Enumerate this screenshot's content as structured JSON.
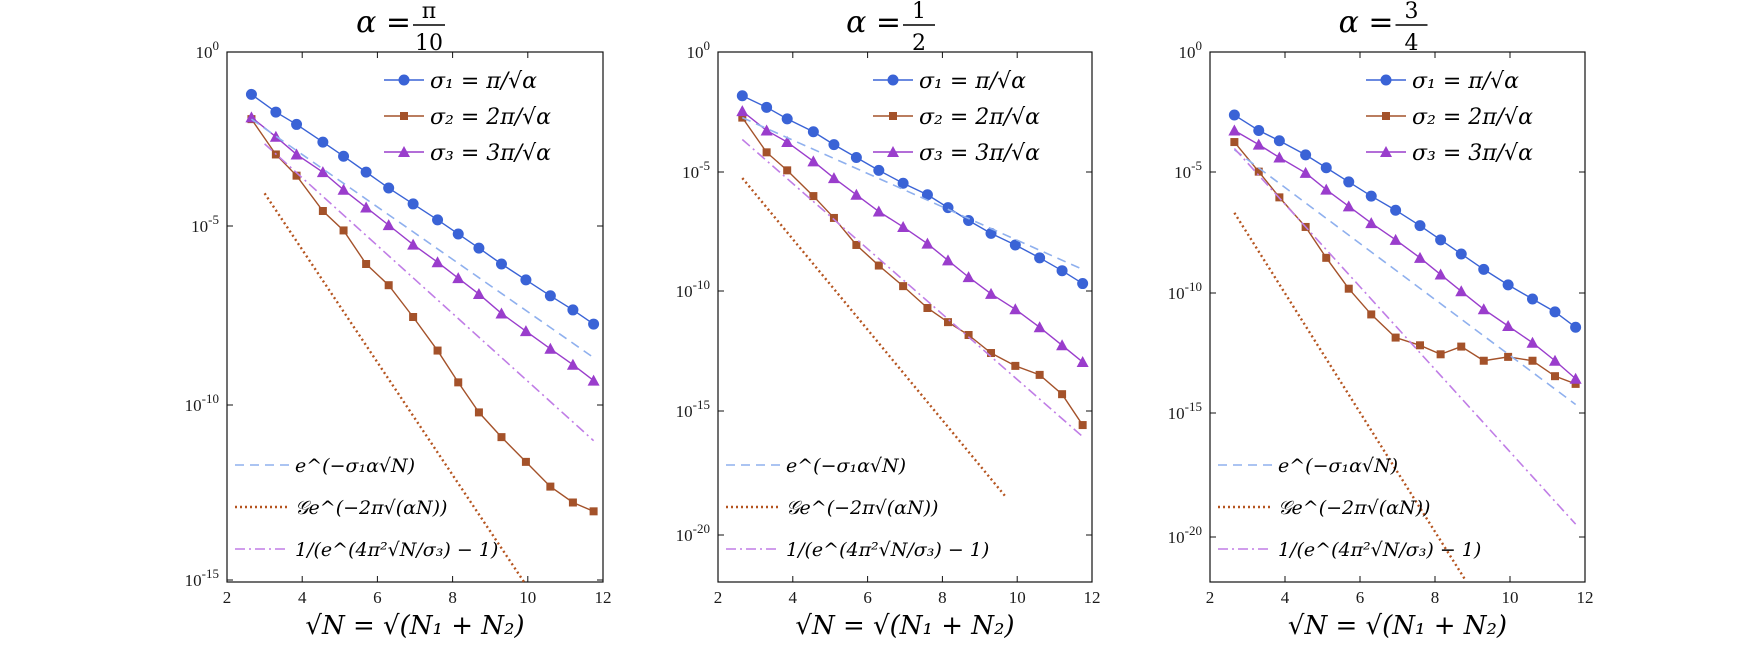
{
  "figure": {
    "x_axis_label": "√N = √(N₁ + N₂)",
    "x_ticks": [
      2,
      4,
      6,
      8,
      10,
      12
    ],
    "colors": {
      "sigma1": "#3a63d6",
      "sigma2": "#a4522a",
      "sigma3": "#9a3dcc",
      "ref1": "#8fb0ee",
      "ref2": "#b5541f",
      "ref3": "#c07de6"
    },
    "legend_top": [
      "σ₁ = π/√α",
      "σ₂ = 2π/√α",
      "σ₃ = 3π/√α"
    ],
    "legend_bottom": [
      "e^(−σ₁α√N)",
      "𝒢e^(−2π√(αN))",
      "1/(e^(4π²√N/σ₃) − 1)"
    ]
  },
  "chart_data": [
    {
      "type": "line",
      "title": "α = π/10",
      "xlabel": "√N = √(N₁ + N₂)",
      "ylabel": "",
      "xlim": [
        2,
        12
      ],
      "ylim_exp": [
        -15,
        0
      ],
      "y_tick_labels": [
        "10^0",
        "10^-5",
        "10^-10",
        "10^-15"
      ],
      "series": [
        {
          "name": "σ₁ = π/√α",
          "marker": "circle",
          "x": [
            2.65,
            3.3,
            3.85,
            4.55,
            5.1,
            5.7,
            6.3,
            6.95,
            7.6,
            8.15,
            8.7,
            9.3,
            9.95,
            10.6,
            11.2,
            11.75
          ],
          "log10y": [
            -1.2,
            -1.7,
            -2.05,
            -2.55,
            -2.95,
            -3.4,
            -3.85,
            -4.3,
            -4.75,
            -5.15,
            -5.55,
            -6.0,
            -6.45,
            -6.9,
            -7.3,
            -7.7
          ]
        },
        {
          "name": "σ₂ = 2π/√α",
          "marker": "square",
          "x": [
            2.65,
            3.3,
            3.85,
            4.55,
            5.1,
            5.7,
            6.3,
            6.95,
            7.6,
            8.15,
            8.7,
            9.3,
            9.95,
            10.6,
            11.2,
            11.75
          ],
          "log10y": [
            -1.9,
            -2.9,
            -3.5,
            -4.5,
            -5.05,
            -6.0,
            -6.6,
            -7.5,
            -8.45,
            -9.35,
            -10.2,
            -10.9,
            -11.6,
            -12.3,
            -12.75,
            -13.0
          ]
        },
        {
          "name": "σ₃ = 3π/√α",
          "marker": "triangle",
          "x": [
            2.65,
            3.3,
            3.85,
            4.55,
            5.1,
            5.7,
            6.3,
            6.95,
            7.6,
            8.15,
            8.7,
            9.3,
            9.95,
            10.6,
            11.2,
            11.75
          ],
          "log10y": [
            -1.85,
            -2.4,
            -2.9,
            -3.4,
            -3.9,
            -4.4,
            -4.9,
            -5.45,
            -5.95,
            -6.4,
            -6.85,
            -7.4,
            -7.9,
            -8.4,
            -8.85,
            -9.3
          ]
        },
        {
          "name": "e^(−σ₁α√N)",
          "style": "dashed",
          "x": [
            2.65,
            11.75
          ],
          "log10y": [
            -1.9,
            -8.65
          ]
        },
        {
          "name": "𝒢e^(−2π√(αN))",
          "style": "dotted",
          "x": [
            3.0,
            9.9
          ],
          "log10y": [
            -4.0,
            -15.0
          ]
        },
        {
          "name": "1/(e^(4π²√N/σ₃) − 1)",
          "style": "dashdot",
          "x": [
            3.0,
            11.75
          ],
          "log10y": [
            -2.6,
            -11.0
          ]
        }
      ]
    },
    {
      "type": "line",
      "title": "α = 1/2",
      "xlabel": "√N = √(N₁ + N₂)",
      "ylabel": "",
      "xlim": [
        2,
        12
      ],
      "ylim_exp": [
        -22,
        0
      ],
      "y_tick_labels": [
        "10^0",
        "10^-5",
        "10^-10",
        "10^-15",
        "10^-20"
      ],
      "series": [
        {
          "name": "σ₁ = π/√α",
          "marker": "circle",
          "x": [
            2.65,
            3.3,
            3.85,
            4.55,
            5.1,
            5.7,
            6.3,
            6.95,
            7.6,
            8.15,
            8.7,
            9.3,
            9.95,
            10.6,
            11.2,
            11.75
          ],
          "log10y": [
            -1.7,
            -2.15,
            -2.6,
            -3.1,
            -3.6,
            -4.1,
            -4.6,
            -5.1,
            -5.55,
            -6.05,
            -6.55,
            -7.05,
            -7.5,
            -8.0,
            -8.5,
            -9.0
          ]
        },
        {
          "name": "σ₂ = 2π/√α",
          "marker": "square",
          "x": [
            2.65,
            3.3,
            3.85,
            4.55,
            5.1,
            5.7,
            6.3,
            6.95,
            7.6,
            8.15,
            8.7,
            9.3,
            9.95,
            10.6,
            11.2,
            11.75
          ],
          "log10y": [
            -2.55,
            -3.9,
            -4.6,
            -5.6,
            -6.45,
            -7.5,
            -8.3,
            -9.1,
            -9.95,
            -10.5,
            -11.0,
            -11.7,
            -12.2,
            -12.55,
            -13.3,
            -14.5
          ]
        },
        {
          "name": "σ₃ = 3π/√α",
          "marker": "triangle",
          "x": [
            2.65,
            3.3,
            3.85,
            4.55,
            5.1,
            5.7,
            6.3,
            6.95,
            7.6,
            8.15,
            8.7,
            9.3,
            9.95,
            10.6,
            11.2,
            11.75
          ],
          "log10y": [
            -2.3,
            -3.05,
            -3.5,
            -4.25,
            -4.9,
            -5.55,
            -6.2,
            -6.8,
            -7.45,
            -8.1,
            -8.75,
            -9.4,
            -10.0,
            -10.7,
            -11.4,
            -12.05
          ]
        },
        {
          "name": "e^(−σ₁α√N)",
          "style": "dashed",
          "x": [
            2.65,
            11.75
          ],
          "log10y": [
            -2.55,
            -8.45
          ]
        },
        {
          "name": "𝒢e^(−2π√(αN))",
          "style": "dotted",
          "x": [
            2.65,
            9.7
          ],
          "log10y": [
            -4.9,
            -17.3
          ]
        },
        {
          "name": "1/(e^(4π²√N/σ₃) − 1)",
          "style": "dashdot",
          "x": [
            2.65,
            11.75
          ],
          "log10y": [
            -3.4,
            -14.95
          ]
        }
      ]
    },
    {
      "type": "line",
      "title": "α = 3/4",
      "xlabel": "√N = √(N₁ + N₂)",
      "ylabel": "",
      "xlim": [
        2,
        12
      ],
      "ylim_exp": [
        -22,
        0
      ],
      "y_tick_labels": [
        "10^0",
        "10^-5",
        "10^-10",
        "10^-15",
        "10^-20"
      ],
      "series": [
        {
          "name": "σ₁ = π/√α",
          "marker": "circle",
          "x": [
            2.65,
            3.3,
            3.85,
            4.55,
            5.1,
            5.7,
            6.3,
            6.95,
            7.6,
            8.15,
            8.7,
            9.3,
            9.95,
            10.6,
            11.2,
            11.75
          ],
          "log10y": [
            -2.45,
            -3.05,
            -3.45,
            -4.0,
            -4.5,
            -5.05,
            -5.6,
            -6.15,
            -6.75,
            -7.3,
            -7.85,
            -8.45,
            -9.05,
            -9.6,
            -10.1,
            -10.7
          ]
        },
        {
          "name": "σ₂ = 2π/√α",
          "marker": "square",
          "x": [
            2.65,
            3.3,
            3.85,
            4.55,
            5.1,
            5.7,
            6.3,
            6.95,
            7.6,
            8.15,
            8.7,
            9.3,
            9.95,
            10.6,
            11.2,
            11.75
          ],
          "log10y": [
            -3.5,
            -4.65,
            -5.65,
            -6.8,
            -8.0,
            -9.2,
            -10.2,
            -11.1,
            -11.4,
            -11.75,
            -11.45,
            -12.0,
            -11.85,
            -12.0,
            -12.6,
            -12.9
          ]
        },
        {
          "name": "σ₃ = 3π/√α",
          "marker": "triangle",
          "x": [
            2.65,
            3.3,
            3.85,
            4.55,
            5.1,
            5.7,
            6.3,
            6.95,
            7.6,
            8.15,
            8.7,
            9.3,
            9.95,
            10.6,
            11.2,
            11.75
          ],
          "log10y": [
            -3.05,
            -3.6,
            -4.1,
            -4.7,
            -5.35,
            -6.0,
            -6.65,
            -7.3,
            -8.0,
            -8.65,
            -9.3,
            -10.0,
            -10.65,
            -11.3,
            -12.0,
            -12.7
          ]
        },
        {
          "name": "e^(−σ₁α√N)",
          "style": "dashed",
          "x": [
            2.65,
            11.75
          ],
          "log10y": [
            -3.8,
            -13.7
          ]
        },
        {
          "name": "𝒢e^(−2π√(αN))",
          "style": "dotted",
          "x": [
            2.65,
            8.8
          ],
          "log10y": [
            -6.25,
            -20.5
          ]
        },
        {
          "name": "1/(e^(4π²√N/σ₃) − 1)",
          "style": "dashdot",
          "x": [
            2.65,
            11.75
          ],
          "log10y": [
            -3.75,
            -18.35
          ]
        }
      ]
    }
  ]
}
